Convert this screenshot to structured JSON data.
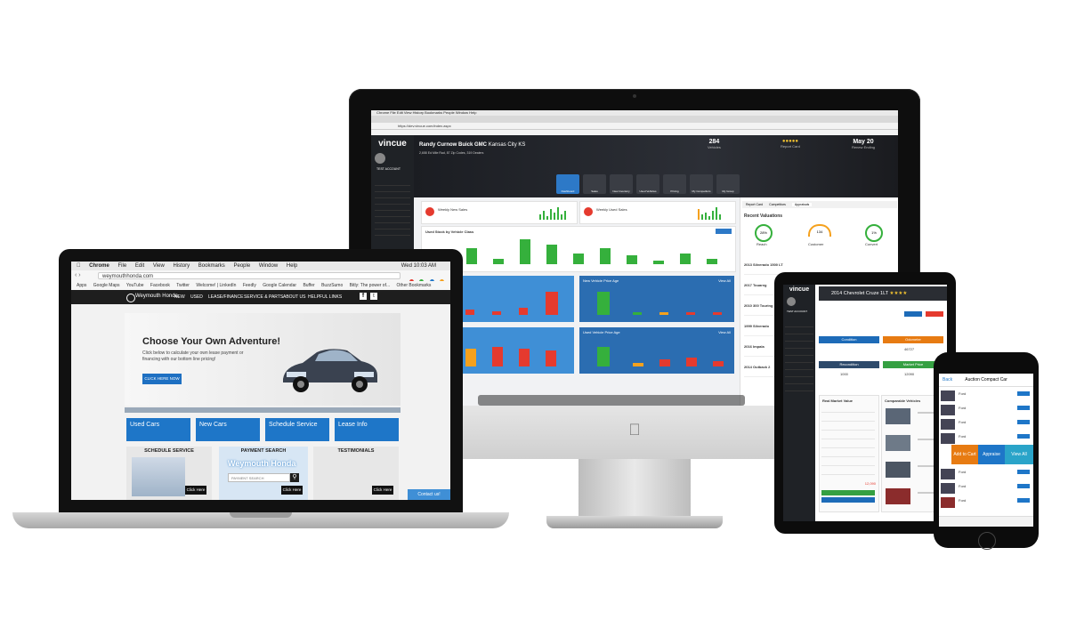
{
  "imac": {
    "menubar": "Chrome   File   Edit   View   History   Bookmarks   People   Window   Help",
    "url": "https://dev.vincue.com/index.aspx",
    "logo": "vincue",
    "account": "TEST ACCOUNT",
    "dealer_name": "Randy Curnow Buick GMC",
    "dealer_location": "Kansas City KS",
    "dealer_sub": "2,658 Ed Mile Rad, 87 Zip Codes, 319 Dealers",
    "vehicles_count": "284",
    "vehicles_label": "Vehicles",
    "report_card_label": "Report Card",
    "renew_date": "May 20",
    "renew_label": "Renew Ending",
    "toolbar": [
      "Dashboard",
      "Sales",
      "New Inventory",
      "Used Vehicles",
      "Pricing",
      "My Competitors",
      "My Group"
    ],
    "weekly_new": "Weekly New Sales",
    "weekly_used": "Weekly Used Sales",
    "used_stock": "Used Stock by Vehicle Class",
    "new_age": "New Vehicle Price Age",
    "used_age": "Used Vehicle Price Age",
    "view_all": "View All",
    "right_tabs": [
      "Report Card",
      "Competitors",
      "Appraisals"
    ],
    "recent_valuations": "Recent Valuations",
    "gauges": [
      {
        "value": "28%",
        "label": "Reach"
      },
      {
        "value": "134",
        "label": "Customer"
      },
      {
        "value": "1%",
        "label": "Convert"
      }
    ],
    "valuations": [
      "2013 Silverado 1500 LT",
      "2017 Touareg",
      "2010 300 Touring",
      "1999 Silverado",
      "2016 Impala",
      "2014 Outback 2"
    ]
  },
  "laptop": {
    "menubar": [
      "Chrome",
      "File",
      "Edit",
      "View",
      "History",
      "Bookmarks",
      "People",
      "Window",
      "Help"
    ],
    "clock": "Wed 10:03 AM",
    "url": "weymouthhonda.com",
    "bookmarks": [
      "Apps",
      "Google Maps",
      "YouTube",
      "Facebook",
      "Twitter",
      "Welcome! | LinkedIn",
      "Feedly",
      "Google Calendar",
      "Buffer",
      "BuzzSumo",
      "Bitly: The power of...",
      "Other Bookmarks"
    ],
    "brand": "Weymouth Honda",
    "nav": [
      "NEW",
      "USED",
      "LEASE/FINANCE",
      "SERVICE & PARTS",
      "ABOUT US",
      "HELPFUL LINKS"
    ],
    "hero_title": "Choose Your Own Adventure!",
    "hero_text": "Click below to calculate your own lease payment or financing with our bottom line pricing!",
    "hero_cta": "CLICK HERE NOW",
    "tiles": [
      "Used Cars",
      "New Cars",
      "Schedule Service",
      "Lease Info"
    ],
    "boxes": [
      "SCHEDULE SERVICE",
      "PAYMENT SEARCH",
      "TESTIMONIALS"
    ],
    "payment_brand": "Weymouth Honda",
    "payment_placeholder": "PAYMENT SEARCH",
    "click_here": "Click Here",
    "contact": "Contact us!"
  },
  "tablet": {
    "logo": "vincue",
    "account": "TEST ACCOUNT",
    "vehicle_title": "2014 Chevrolet Cruze 1LT",
    "condition": "Condition",
    "odometer": "Odometer",
    "odometer_value": "46727",
    "recondition": "Recondition",
    "market_price": "Market Price",
    "recond_value": "1000",
    "market_value": "12090",
    "rmv_title": "Real Market Value",
    "comparable": "Comparable Vehicles",
    "rmv_total": "12,090"
  },
  "phone": {
    "title": "Auction Compact Car",
    "back": "Back",
    "actions": [
      "Add to Cart",
      "Appraise",
      "View All"
    ],
    "listing": "Ford"
  },
  "colors": {
    "brand_blue": "#1e76c8",
    "vincue_dark": "#1f2226",
    "chart_green": "#35b03c",
    "chart_red": "#e53a2e",
    "chart_orange": "#f5a11d"
  }
}
